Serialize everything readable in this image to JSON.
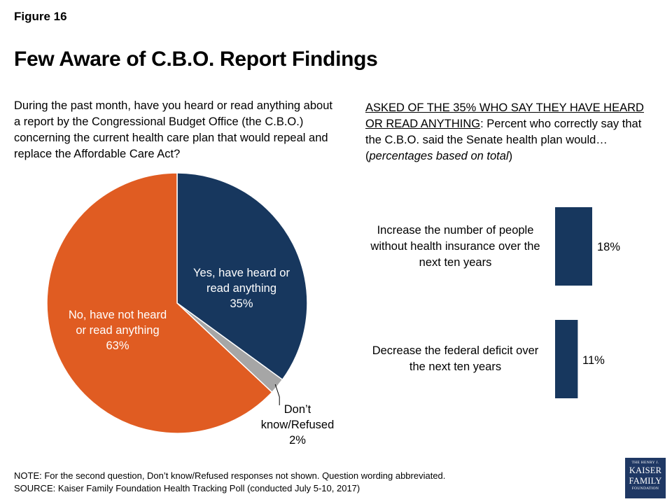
{
  "figure_label": "Figure 16",
  "title": "Few Aware of C.B.O. Report Findings",
  "left_question": "During the past month, have you heard or read anything about a report by the Congressional Budget Office (the C.B.O.) concerning the current health care plan that would repeal and replace the Affordable Care Act?",
  "right_question": {
    "underlined": "ASKED OF THE 35% WHO SAY THEY HAVE HEARD OR READ ANYTHING",
    "rest": ": Percent who correctly say that the C.B.O. said the Senate health plan would…",
    "paren_open": "(",
    "italic": "percentages based on total",
    "paren_close": ")"
  },
  "chart_data": [
    {
      "type": "pie",
      "slices": [
        {
          "label_lines": [
            "Yes, have heard or",
            "read anything"
          ],
          "value": 35,
          "value_label": "35%",
          "color": "#17375e"
        },
        {
          "label_lines": [
            "Don’t",
            "know/Refused"
          ],
          "value": 2,
          "value_label": "2%",
          "color": "#a6a6a6"
        },
        {
          "label_lines": [
            "No, have not heard",
            "or read anything"
          ],
          "value": 63,
          "value_label": "63%",
          "color": "#e05c22"
        }
      ],
      "start_angle_deg": 0,
      "direction": "clockwise"
    },
    {
      "type": "bar",
      "orientation": "horizontal",
      "categories": [
        [
          "Increase the number of people",
          "without health insurance  over the",
          "next ten years"
        ],
        [
          "Decrease the federal deficit over",
          "the next ten years"
        ]
      ],
      "values": [
        18,
        11
      ],
      "value_labels": [
        "18%",
        "11%"
      ],
      "color": "#17375e"
    }
  ],
  "notes": {
    "note": "NOTE: For the second question, Don’t know/Refused responses not shown. Question wording abbreviated.",
    "source": "SOURCE: Kaiser Family Foundation Health Tracking Poll (conducted July 5-10, 2017)"
  },
  "logo": {
    "line1": "THE HENRY J.",
    "line2": "KAISER",
    "line3": "FAMILY",
    "line4": "FOUNDATION"
  }
}
